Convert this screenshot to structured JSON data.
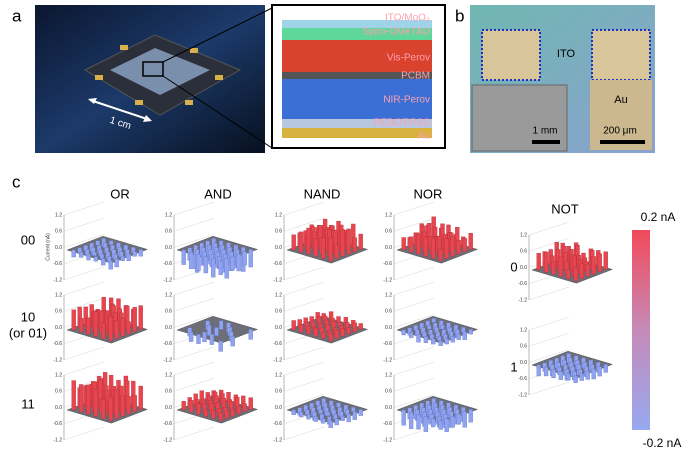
{
  "panel_a": {
    "label": "a",
    "scale": "1 cm",
    "layers": [
      "ITO/MoO₃",
      "Spiro-OMeTAD",
      "Vis-Perov",
      "PCBM",
      "NIR-Perov",
      "PEDOT:PSS",
      "Au"
    ]
  },
  "panel_b": {
    "label": "b",
    "ito": "ITO",
    "au": "Au",
    "inset_scale": "1 mm",
    "scale": "200 μm"
  },
  "panel_c": {
    "label": "c",
    "gates": [
      "OR",
      "AND",
      "NAND",
      "NOR"
    ],
    "inputs": [
      "00",
      "10",
      "11"
    ],
    "input_note": "(or 01)",
    "not_gate": "NOT",
    "not_inputs": [
      "0",
      "1"
    ],
    "z_axis_label": "Current (nA)",
    "z_ticks": [
      "1.2",
      "0.6",
      "0.0",
      "-0.6",
      "-1.2"
    ],
    "colorbar_max": "0.2 nA",
    "colorbar_min": "-0.2 nA"
  }
}
